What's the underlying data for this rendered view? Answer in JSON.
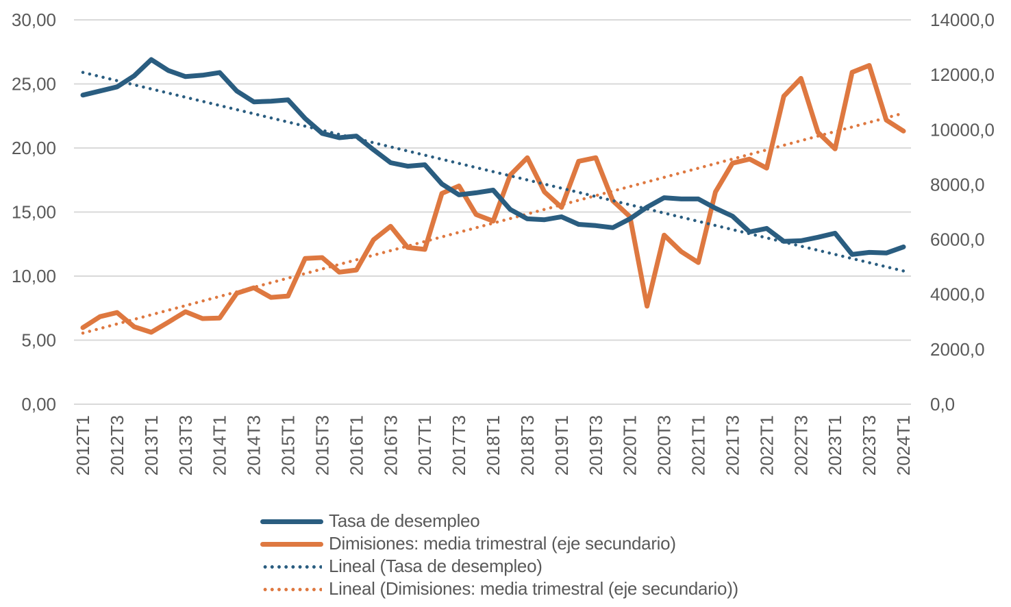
{
  "chart_data": {
    "type": "line",
    "title": "",
    "xlabel": "",
    "ylabel": "",
    "y2label": "",
    "x": [
      "2012T1",
      "2012T2",
      "2012T3",
      "2012T4",
      "2013T1",
      "2013T2",
      "2013T3",
      "2013T4",
      "2014T1",
      "2014T2",
      "2014T3",
      "2014T4",
      "2015T1",
      "2015T2",
      "2015T3",
      "2015T4",
      "2016T1",
      "2016T2",
      "2016T3",
      "2016T4",
      "2017T1",
      "2017T2",
      "2017T3",
      "2017T4",
      "2018T1",
      "2018T2",
      "2018T3",
      "2018T4",
      "2019T1",
      "2019T2",
      "2019T3",
      "2019T4",
      "2020T1",
      "2020T2",
      "2020T3",
      "2020T4",
      "2021T1",
      "2021T2",
      "2021T3",
      "2021T4",
      "2022T1",
      "2022T2",
      "2022T3",
      "2022T4",
      "2023T1",
      "2023T2",
      "2023T3",
      "2023T4",
      "2024T1"
    ],
    "x_tick_labels": [
      "2012T1",
      "2012T3",
      "2013T1",
      "2013T3",
      "2014T1",
      "2014T3",
      "2015T1",
      "2015T3",
      "2016T1",
      "2016T3",
      "2017T1",
      "2017T3",
      "2018T1",
      "2018T3",
      "2019T1",
      "2019T3",
      "2020T1",
      "2020T3",
      "2021T1",
      "2021T3",
      "2022T1",
      "2022T3",
      "2023T1",
      "2023T3",
      "2024T1"
    ],
    "ylim": [
      0,
      30
    ],
    "y_ticks": [
      0,
      5,
      10,
      15,
      20,
      25,
      30
    ],
    "y_tick_labels": [
      "0,00",
      "5,00",
      "10,00",
      "15,00",
      "20,00",
      "25,00",
      "30,00"
    ],
    "y2lim": [
      0,
      14000
    ],
    "y2_ticks": [
      0,
      2000,
      4000,
      6000,
      8000,
      10000,
      12000,
      14000
    ],
    "y2_tick_labels": [
      "0,0",
      "2000,0",
      "4000,0",
      "6000,0",
      "8000,0",
      "10000,0",
      "12000,0",
      "14000,0"
    ],
    "grid": true,
    "legend_position": "bottom",
    "series": [
      {
        "name": "Tasa de desempleo",
        "axis": "primary",
        "style": "solid",
        "color": "#2A5D80",
        "values": [
          24.13,
          24.45,
          24.77,
          25.63,
          26.9,
          26.05,
          25.57,
          25.68,
          25.89,
          24.45,
          23.6,
          23.65,
          23.76,
          22.3,
          21.14,
          20.8,
          20.93,
          19.86,
          18.85,
          18.58,
          18.69,
          17.19,
          16.34,
          16.5,
          16.71,
          15.2,
          14.47,
          14.4,
          14.63,
          14.04,
          13.94,
          13.78,
          14.47,
          15.38,
          16.12,
          16.02,
          16.02,
          15.3,
          14.68,
          13.45,
          13.72,
          12.71,
          12.76,
          13.03,
          13.35,
          11.69,
          11.85,
          11.8,
          12.28
        ]
      },
      {
        "name": "Dimisiones: media trimestral (eje secundario)",
        "axis": "secondary",
        "style": "solid",
        "color": "#DE7840",
        "values": [
          2790,
          3190,
          3340,
          2820,
          2620,
          2990,
          3370,
          3120,
          3140,
          4040,
          4240,
          3890,
          3940,
          5310,
          5340,
          4810,
          4890,
          5990,
          6480,
          5710,
          5640,
          7680,
          7950,
          6910,
          6670,
          8350,
          8980,
          7730,
          7170,
          8850,
          8980,
          7410,
          6830,
          3570,
          6160,
          5560,
          5160,
          7730,
          8780,
          8930,
          8600,
          11220,
          11870,
          9900,
          9300,
          12090,
          12340,
          10350,
          9950
        ]
      },
      {
        "name": "Lineal (Tasa de desempleo)",
        "axis": "primary",
        "style": "dotted",
        "color": "#2A5D80",
        "trend_of": "Tasa de desempleo",
        "start": 25.9,
        "end": 10.4
      },
      {
        "name": "Lineal (Dimisiones: media trimestral (eje secundario))",
        "axis": "secondary",
        "style": "dotted",
        "color": "#DE7840",
        "trend_of": "Dimisiones: media trimestral (eje secundario)",
        "start": 2590,
        "end": 10600
      }
    ]
  },
  "legend": {
    "items": [
      {
        "label": "Tasa de desempleo",
        "style": "solid",
        "color": "#2A5D80"
      },
      {
        "label": "Dimisiones: media trimestral (eje secundario)",
        "style": "solid",
        "color": "#DE7840"
      },
      {
        "label": "Lineal (Tasa de desempleo)",
        "style": "dotted",
        "color": "#2A5D80"
      },
      {
        "label": "Lineal (Dimisiones: media trimestral (eje secundario))",
        "style": "dotted",
        "color": "#DE7840"
      }
    ]
  },
  "colors": {
    "grid": "#D9D9D9",
    "tick_text": "#595959"
  }
}
